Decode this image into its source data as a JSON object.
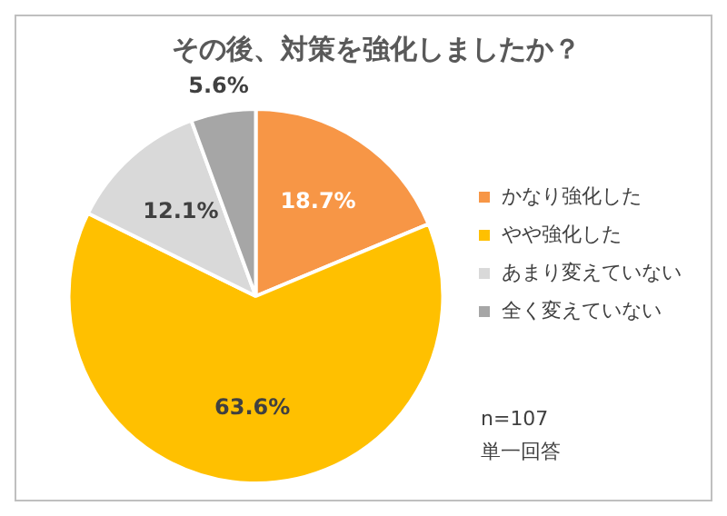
{
  "chart_data": {
    "type": "pie",
    "title": "その後、対策を強化しましたか？",
    "categories": [
      "かなり強化した",
      "やや強化した",
      "あまり変えていない",
      "全く変えていない"
    ],
    "values": [
      18.7,
      63.6,
      12.1,
      5.6
    ],
    "colors": [
      "#f79646",
      "#ffc000",
      "#d9d9d9",
      "#a6a6a6"
    ],
    "value_labels": [
      "18.7%",
      "63.6%",
      "12.1%",
      "5.6%"
    ],
    "legend": "right",
    "annotations": [
      "n=107",
      "単一回答"
    ]
  }
}
